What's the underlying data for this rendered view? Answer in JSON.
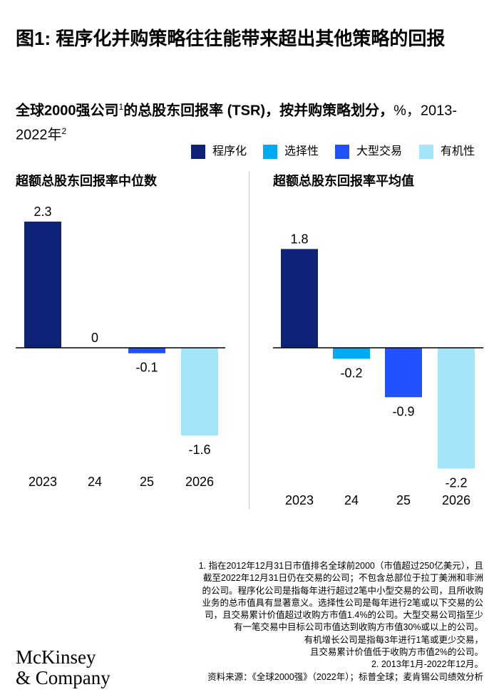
{
  "title": "图1: 程序化并购策略往往能带来超出其他策略的回报",
  "subtitle": {
    "bold_part": "全球2000强公司",
    "sup1": "1",
    "bold_part2": "的总股东回报率 (TSR)，按并购策略划分，",
    "normal_part": "%，2013-2022年",
    "sup2": "2"
  },
  "legend": [
    {
      "label": "程序化",
      "color": "#0e2277"
    },
    {
      "label": "选择性",
      "color": "#00a9f4"
    },
    {
      "label": "大型交易",
      "color": "#2251ff"
    },
    {
      "label": "有机性",
      "color": "#a5e5fb"
    }
  ],
  "chart_data": [
    {
      "type": "bar",
      "title": "超额总股东回报率中位数",
      "categories": [
        "2023",
        "24",
        "25",
        "2026"
      ],
      "values": [
        2.3,
        0,
        -0.1,
        -1.6
      ],
      "data_labels": [
        "2.3",
        "0",
        "-0.1",
        "-1.6"
      ],
      "colors": [
        "#0e2277",
        "#00a9f4",
        "#2251ff",
        "#a5e5fb"
      ],
      "xlabel": "",
      "ylabel": "",
      "ylim": [
        -2.3,
        2.3
      ]
    },
    {
      "type": "bar",
      "title": "超额总股东回报率平均值",
      "categories": [
        "2023",
        "24",
        "25",
        "2026"
      ],
      "values": [
        1.8,
        -0.2,
        -0.9,
        -2.2
      ],
      "data_labels": [
        "1.8",
        "-0.2",
        "-0.9",
        "-2.2"
      ],
      "colors": [
        "#0e2277",
        "#00a9f4",
        "#2251ff",
        "#a5e5fb"
      ],
      "xlabel": "",
      "ylabel": "",
      "ylim": [
        -2.3,
        2.3
      ]
    }
  ],
  "footnotes": [
    "1.   指在2012年12月31日市值排名全球前2000（市值超过250亿美元），且",
    "截至2022年12月31日仍在交易的公司；不包含总部位于拉丁美洲和非洲",
    "的公司。程序化公司是指每年进行超过2笔中小型交易的公司，且所收购",
    "业务的总市值具有显著意义。选择性公司是每年进行2笔或以下交易的公",
    "司，且交易累计价值超过收购方市值1.4%的公司。大型交易公司指至少",
    "有一笔交易中目标公司市值达到收购方市值30%或以上的公司。",
    "有机增长公司是指每3年进行1笔或更少交易，",
    "且交易累计价值低于收购方市值2%的公司。",
    "2.   2013年1月-2022年12月。",
    "资料来源：《全球2000强》（2022年）；标普全球；麦肯锡公司绩效分析"
  ],
  "logo": {
    "line1": "McKinsey",
    "line2": "& Company"
  }
}
